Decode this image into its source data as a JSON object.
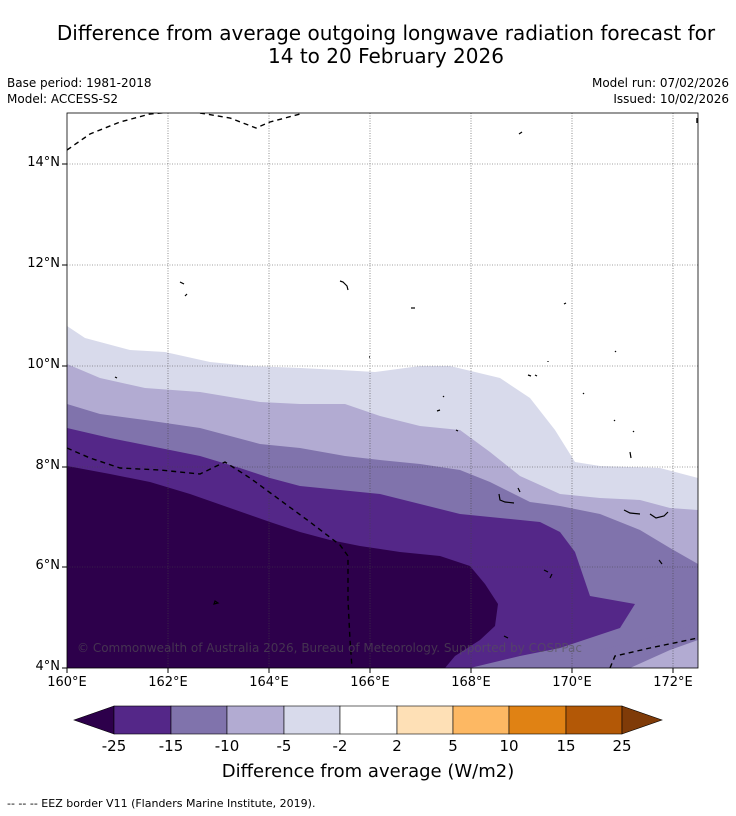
{
  "title_line1": "Difference from average outgoing longwave radiation forecast for",
  "title_line2": "14 to 20 February 2026",
  "base_period": "Base period: 1981-2018",
  "model": "Model: ACCESS-S2",
  "model_run": "Model run: 07/02/2026",
  "issued": "Issued: 10/02/2026",
  "copyright": "© Commonwealth of Australia 2026, Bureau of Meteorology. Supported by COSPPac",
  "footer": "--  --  -- EEZ border V11 (Flanders Marine Institute, 2019).",
  "lat_labels": [
    "14°N",
    "12°N",
    "10°N",
    "8°N",
    "6°N",
    "4°N"
  ],
  "lon_labels": [
    "160°E",
    "162°E",
    "164°E",
    "166°E",
    "168°E",
    "170°E",
    "172°E"
  ],
  "colorbar": {
    "title": "Difference from average (W/m2)",
    "ticks": [
      "-25",
      "-15",
      "-10",
      "-5",
      "-2",
      "2",
      "5",
      "10",
      "15",
      "25"
    ],
    "colors": {
      "lt_-25": "#2d004b",
      "-25_-15": "#542788",
      "-15_-10": "#8073ac",
      "-10_-5": "#b2abd2",
      "-5_-2": "#d8daeb",
      "-2_2": "#ffffff",
      "2_5": "#fee0b6",
      "5_10": "#fdb863",
      "10_15": "#e08214",
      "15_25": "#b35806",
      "gt_25": "#7f3b08"
    }
  },
  "map": {
    "lon_range": [
      160,
      172.5
    ],
    "lat_range": [
      4,
      15
    ]
  }
}
